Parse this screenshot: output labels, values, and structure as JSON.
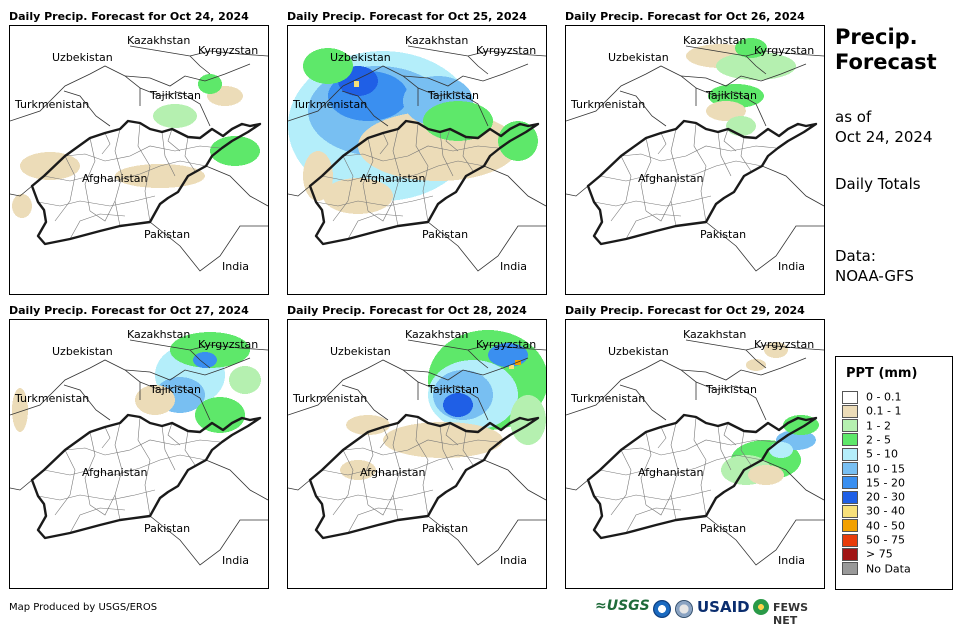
{
  "panels": [
    {
      "title": "Daily Precip. Forecast for Oct 24, 2024"
    },
    {
      "title": "Daily Precip. Forecast for Oct 25, 2024"
    },
    {
      "title": "Daily Precip. Forecast for Oct 26, 2024"
    },
    {
      "title": "Daily Precip. Forecast for Oct 27, 2024"
    },
    {
      "title": "Daily Precip. Forecast for Oct 28, 2024"
    },
    {
      "title": "Daily Precip. Forecast for Oct 29, 2024"
    }
  ],
  "map_labels": {
    "uzbekistan": "Uzbekistan",
    "kazakhstan": "Kazakhstan",
    "kyrgyzstan": "Kyrgyzstan",
    "tajikistan": "Tajikistan",
    "turkmenistan": "Turkmenistan",
    "afghanistan": "Afghanistan",
    "pakistan": "Pakistan",
    "india": "India"
  },
  "side": {
    "title_line1": "Precip.",
    "title_line2": "Forecast",
    "asof_line1": "as of",
    "asof_line2": "Oct 24, 2024",
    "totals": "Daily Totals",
    "data_line1": "Data:",
    "data_line2": "NOAA-GFS"
  },
  "legend": {
    "title": "PPT (mm)",
    "items": [
      {
        "label": "0 - 0.1",
        "color": "#ffffff"
      },
      {
        "label": "0.1 - 1",
        "color": "#ecdcb8"
      },
      {
        "label": "1 - 2",
        "color": "#b5f0b0"
      },
      {
        "label": "2 - 5",
        "color": "#5ee86a"
      },
      {
        "label": "5 - 10",
        "color": "#b4eefa"
      },
      {
        "label": "10 - 15",
        "color": "#78bff2"
      },
      {
        "label": "15 - 20",
        "color": "#3a8ff0"
      },
      {
        "label": "20 - 30",
        "color": "#1f5fe6"
      },
      {
        "label": "30 - 40",
        "color": "#f8e07a"
      },
      {
        "label": "40 - 50",
        "color": "#f2a000"
      },
      {
        "label": "50 - 75",
        "color": "#e83c0a"
      },
      {
        "label": "> 75",
        "color": "#a01414"
      },
      {
        "label": "No Data",
        "color": "#999999"
      }
    ]
  },
  "footer": {
    "credit": "Map Produced by USGS/EROS"
  },
  "logos": {
    "usgs": "≈USGS",
    "usaid": "USAID",
    "fews": "FEWS NET"
  }
}
